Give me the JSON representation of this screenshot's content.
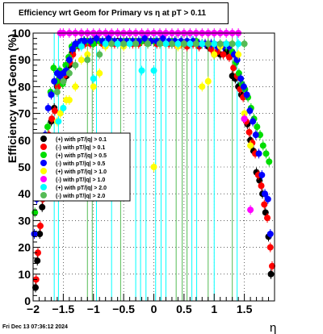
{
  "chart_data": {
    "type": "scatter",
    "title": "Efficiency wrt Geom for Primary vs    η  at pT > 0.11",
    "xlabel": "η",
    "ylabel": "Efficiency wrt Geom (%)",
    "xlim": [
      -2,
      2
    ],
    "ylim": [
      0,
      100
    ],
    "xticks": [
      "−2",
      "−1.5",
      "−1",
      "−0.5",
      "0",
      "0.5",
      "1",
      "1.5"
    ],
    "xtick_values": [
      -2,
      -1.5,
      -1,
      -0.5,
      0,
      0.5,
      1,
      1.5
    ],
    "yticks": [
      "0",
      "10",
      "20",
      "30",
      "40",
      "50",
      "60",
      "70",
      "80",
      "90",
      "100"
    ],
    "grid": true,
    "legend_position": "left-middle",
    "footer": "Fri Dec 13 07:36:12 2024",
    "series": [
      {
        "name": "(+) with pT/|q| > 0.1",
        "color": "#000000",
        "x": [
          -1.96,
          -1.93,
          -1.89,
          -1.85,
          -1.8,
          -1.75,
          -1.7,
          -1.65,
          -1.6,
          -1.55,
          -1.5,
          -1.45,
          -1.4,
          -1.35,
          -1.3,
          -1.25,
          -1.2,
          -1.15,
          -1.1,
          -1.0,
          -0.9,
          -0.8,
          -0.7,
          -0.6,
          -0.5,
          -0.4,
          -0.3,
          -0.2,
          -0.1,
          0.0,
          0.1,
          0.2,
          0.3,
          0.4,
          0.5,
          0.6,
          0.7,
          0.8,
          0.9,
          1.0,
          1.1,
          1.2,
          1.3,
          1.35,
          1.4,
          1.45,
          1.5,
          1.55,
          1.6,
          1.65,
          1.7,
          1.75,
          1.8,
          1.85,
          1.9,
          1.94
        ],
        "y": [
          5,
          15,
          25,
          35,
          50,
          60,
          67,
          72,
          80,
          84,
          82,
          84,
          88,
          93,
          95,
          96,
          96,
          97,
          97,
          97,
          97,
          97,
          97,
          97,
          96,
          97,
          97,
          97,
          97,
          97,
          97,
          96,
          96,
          96,
          96,
          96,
          96,
          96,
          95,
          92,
          92,
          93,
          84,
          83,
          80,
          77,
          68,
          66,
          60,
          56,
          48,
          45,
          40,
          33,
          24,
          10
        ]
      },
      {
        "name": "(-) with pT/|q| > 0.1",
        "color": "#ff0000",
        "x": [
          -1.95,
          -1.92,
          -1.88,
          -1.84,
          -1.79,
          -1.74,
          -1.69,
          -1.64,
          -1.59,
          -1.54,
          -1.49,
          -1.44,
          -1.39,
          -1.34,
          -1.29,
          -1.24,
          -1.19,
          -1.14,
          -1.05,
          -0.95,
          -0.85,
          -0.75,
          -0.65,
          -0.55,
          -0.45,
          -0.35,
          -0.25,
          -0.15,
          -0.05,
          0.05,
          0.15,
          0.25,
          0.35,
          0.45,
          0.55,
          0.65,
          0.75,
          0.85,
          0.95,
          1.05,
          1.15,
          1.25,
          1.32,
          1.38,
          1.43,
          1.48,
          1.53,
          1.58,
          1.63,
          1.68,
          1.73,
          1.78,
          1.83,
          1.88,
          1.93,
          1.96
        ],
        "y": [
          8,
          18,
          28,
          38,
          52,
          62,
          68,
          71,
          80,
          82,
          84,
          85,
          89,
          92,
          96,
          95,
          96,
          96,
          96,
          97,
          96,
          97,
          96,
          97,
          97,
          96,
          96,
          97,
          97,
          96,
          97,
          96,
          96,
          96,
          95,
          96,
          95,
          96,
          94,
          93,
          92,
          91,
          87,
          84,
          79,
          76,
          67,
          63,
          59,
          55,
          47,
          43,
          36,
          31,
          20,
          13
        ]
      },
      {
        "name": "(+) with pT/|q| > 0.5",
        "color": "#00dd00",
        "x": [
          -1.97,
          -1.91,
          -1.86,
          -1.81,
          -1.76,
          -1.71,
          -1.66,
          -1.61,
          -1.56,
          -1.51,
          -1.46,
          -1.41,
          -1.36,
          -1.31,
          -1.26,
          -1.21,
          -1.16,
          -1.1,
          -1.0,
          -0.9,
          -0.8,
          -0.7,
          -0.6,
          -0.5,
          -0.4,
          -0.3,
          -0.2,
          -0.1,
          0.0,
          0.1,
          0.2,
          0.3,
          0.4,
          0.5,
          0.6,
          0.7,
          0.8,
          0.9,
          1.0,
          1.1,
          1.2,
          1.3,
          1.36,
          1.41,
          1.46,
          1.51,
          1.56,
          1.61,
          1.66,
          1.71,
          1.76,
          1.81,
          1.86,
          1.91
        ],
        "y": [
          33,
          43,
          55,
          58,
          65,
          78,
          87,
          82,
          86,
          81,
          88,
          91,
          95,
          95,
          96,
          96,
          97,
          97,
          96,
          97,
          97,
          97,
          96,
          97,
          97,
          97,
          97,
          97,
          97,
          97,
          96,
          97,
          96,
          96,
          96,
          97,
          96,
          96,
          96,
          95,
          95,
          93,
          89,
          85,
          81,
          79,
          76,
          72,
          68,
          65,
          62,
          58,
          55,
          52
        ]
      },
      {
        "name": "(-) with pT/|q| > 0.5",
        "color": "#0000ff",
        "x": [
          -1.98,
          -1.94,
          -1.9,
          -1.85,
          -1.8,
          -1.75,
          -1.7,
          -1.65,
          -1.6,
          -1.55,
          -1.5,
          -1.45,
          -1.4,
          -1.35,
          -1.3,
          -1.25,
          -1.2,
          -1.15,
          -1.05,
          -0.95,
          -0.85,
          -0.75,
          -0.65,
          -0.55,
          -0.45,
          -0.35,
          -0.25,
          -0.15,
          -0.05,
          0.05,
          0.15,
          0.25,
          0.35,
          0.45,
          0.55,
          0.65,
          0.75,
          0.85,
          0.95,
          1.05,
          1.15,
          1.25,
          1.33,
          1.38,
          1.44,
          1.49,
          1.54,
          1.59,
          1.64,
          1.69,
          1.74,
          1.79,
          1.84,
          1.89,
          1.93
        ],
        "y": [
          25,
          38,
          50,
          58,
          62,
          72,
          77,
          82,
          85,
          84,
          85,
          86,
          90,
          94,
          96,
          96,
          97,
          97,
          97,
          98,
          97,
          98,
          97,
          97,
          97,
          97,
          97,
          98,
          97,
          97,
          98,
          97,
          97,
          97,
          97,
          97,
          96,
          96,
          96,
          95,
          95,
          95,
          92,
          90,
          83,
          80,
          77,
          71,
          67,
          62,
          55,
          47,
          40,
          38,
          25
        ]
      },
      {
        "name": "(+) with pT/|q| > 1.0",
        "color": "#ffff00",
        "x": [
          -1.6,
          -1.55,
          -1.5,
          -1.45,
          -1.4,
          -1.3,
          -1.2,
          -1.1,
          -1.0,
          -0.9,
          -0.8,
          -0.6,
          -0.5,
          -0.4,
          -0.3,
          -0.1,
          0.0,
          0.1,
          0.2,
          0.4,
          0.5,
          0.7,
          0.8,
          0.9,
          1.0,
          1.1,
          1.2,
          1.3,
          1.4,
          1.5,
          1.6
        ],
        "y": [
          67,
          70,
          72,
          75,
          75,
          80,
          90,
          92,
          80,
          85,
          95,
          96,
          95,
          96,
          96,
          96,
          50,
          96,
          96,
          95,
          96,
          96,
          80,
          82,
          92,
          95,
          96,
          96,
          92,
          70,
          58
        ]
      },
      {
        "name": "(-) with pT/|q| > 1.0",
        "color": "#ff00ff",
        "x": [
          -1.55,
          -1.5,
          -1.4,
          -1.3,
          -1.2,
          -1.1,
          -1.0,
          -0.9,
          -0.8,
          -0.7,
          -0.6,
          -0.5,
          -0.4,
          -0.3,
          -0.2,
          -0.1,
          0.0,
          0.1,
          0.2,
          0.3,
          0.4,
          0.5,
          0.6,
          0.7,
          0.8,
          0.9,
          1.0,
          1.1,
          1.2,
          1.3,
          1.4,
          1.5,
          1.6
        ],
        "y": [
          100,
          100,
          100,
          100,
          100,
          100,
          100,
          100,
          100,
          100,
          100,
          100,
          100,
          100,
          100,
          100,
          100,
          100,
          100,
          100,
          100,
          100,
          100,
          100,
          100,
          100,
          100,
          100,
          100,
          100,
          100,
          68,
          34
        ]
      },
      {
        "name": "(+) with pT/|q| > 2.0",
        "color": "#00ffff",
        "x": [
          -1.58,
          -1.5,
          -1.2,
          -1.0,
          -0.8,
          -0.6,
          -0.4,
          -0.2,
          0.0,
          0.2,
          0.4,
          0.6,
          0.8,
          1.0,
          1.2,
          1.4
        ],
        "y": [
          67,
          72,
          95,
          83,
          96,
          96,
          96,
          86,
          86,
          96,
          96,
          96,
          96,
          96,
          96,
          96
        ]
      },
      {
        "name": "(-) with pT/|q| > 2.0",
        "color": "#55bb55",
        "x": [
          -1.6,
          -1.5,
          -1.4,
          -1.3,
          -1.1,
          -0.9,
          -0.7,
          -0.5,
          -0.3,
          -0.1,
          0.1,
          0.3,
          0.5,
          0.7,
          0.9,
          1.1,
          1.3,
          1.5
        ],
        "y": [
          78,
          82,
          85,
          88,
          90,
          92,
          96,
          96,
          96,
          96,
          96,
          96,
          96,
          96,
          96,
          96,
          96,
          96
        ]
      }
    ],
    "vertical_error_lines": [
      {
        "x": -1.65,
        "color": "#00ffff"
      },
      {
        "x": -1.58,
        "color": "#00ffff"
      },
      {
        "x": -1.1,
        "color": "#55bb55"
      },
      {
        "x": -1.02,
        "color": "#55bb55"
      },
      {
        "x": -0.95,
        "color": "#00ffff"
      },
      {
        "x": -0.7,
        "color": "#00ffff"
      },
      {
        "x": -0.55,
        "color": "#55bb55"
      },
      {
        "x": -0.3,
        "color": "#00ffff"
      },
      {
        "x": -0.22,
        "color": "#00ffff"
      },
      {
        "x": -0.13,
        "color": "#00ffff"
      },
      {
        "x": 0.03,
        "color": "#00ffff"
      },
      {
        "x": 0.12,
        "color": "#00ffff"
      },
      {
        "x": 0.2,
        "color": "#00ffff"
      },
      {
        "x": 0.37,
        "color": "#55bb55"
      },
      {
        "x": 0.47,
        "color": "#55bb55"
      },
      {
        "x": 0.55,
        "color": "#55bb55"
      },
      {
        "x": 0.63,
        "color": "#00ffff"
      },
      {
        "x": 0.71,
        "color": "#00ffff"
      },
      {
        "x": 0.9,
        "color": "#55bb55"
      },
      {
        "x": 1.0,
        "color": "#00ffff"
      },
      {
        "x": 1.3,
        "color": "#55bb55"
      },
      {
        "x": 1.38,
        "color": "#00ffff"
      }
    ]
  }
}
